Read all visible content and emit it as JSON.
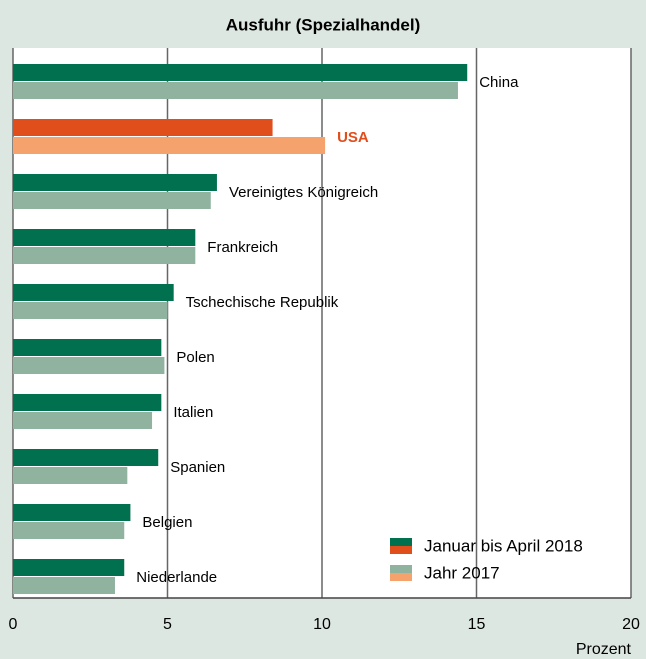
{
  "chart_data": {
    "type": "bar",
    "orientation": "horizontal",
    "title": "Ausfuhr (Spezialhandel)",
    "categories": [
      "China",
      "USA",
      "Vereinigtes Königreich",
      "Frankreich",
      "Tschechische Republik",
      "Polen",
      "Italien",
      "Spanien",
      "Belgien",
      "Niederlande"
    ],
    "highlight": "USA",
    "series": [
      {
        "name": "Januar bis April 2018",
        "color": "#00704f",
        "highlight_color": "#e04e1c",
        "values": [
          14.7,
          8.4,
          6.6,
          5.9,
          5.2,
          4.8,
          4.8,
          4.7,
          3.8,
          3.6
        ]
      },
      {
        "name": "Jahr 2017",
        "color": "#8fb39f",
        "highlight_color": "#f5a26c",
        "values": [
          14.4,
          10.1,
          6.4,
          5.9,
          5.0,
          4.9,
          4.5,
          3.7,
          3.6,
          3.3
        ]
      }
    ],
    "xlim": [
      0,
      20
    ],
    "xticks": [
      0,
      5,
      10,
      15,
      20
    ],
    "xlabel": "Prozent",
    "grid": true,
    "legend": "lower right"
  }
}
